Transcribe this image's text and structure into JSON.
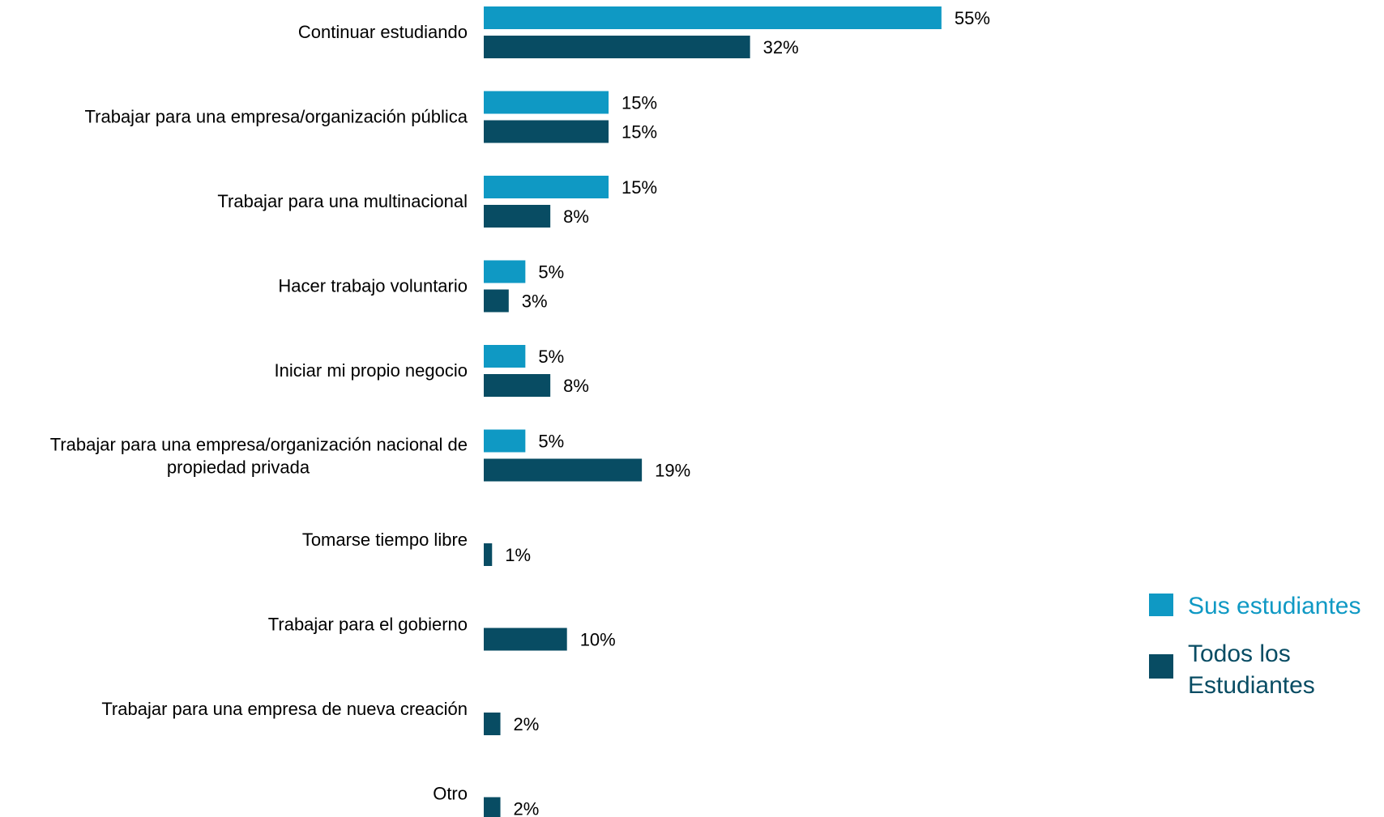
{
  "chart_data": {
    "type": "bar",
    "orientation": "horizontal",
    "categories": [
      "Continuar estudiando",
      "Trabajar para una empresa/organización pública",
      "Trabajar para una multinacional",
      "Hacer trabajo voluntario",
      "Iniciar mi propio negocio",
      "Trabajar para una empresa/organización nacional de propiedad privada",
      "Tomarse tiempo libre",
      "Trabajar para el gobierno",
      "Trabajar para una empresa de nueva creación",
      "Otro"
    ],
    "category_lines": [
      [
        "Continuar estudiando"
      ],
      [
        "Trabajar para una empresa/organización pública"
      ],
      [
        "Trabajar para una multinacional"
      ],
      [
        "Hacer trabajo voluntario"
      ],
      [
        "Iniciar mi propio negocio"
      ],
      [
        "Trabajar para una empresa/organización nacional de",
        "propiedad privada"
      ],
      [
        "Tomarse tiempo libre"
      ],
      [
        "Trabajar para el gobierno"
      ],
      [
        "Trabajar para una empresa de nueva creación"
      ],
      [
        "Otro"
      ]
    ],
    "series": [
      {
        "name": "Sus estudiantes",
        "color": "#0f99c4",
        "values": [
          55,
          15,
          15,
          5,
          5,
          5,
          null,
          null,
          null,
          null
        ],
        "labels": [
          "55%",
          "15%",
          "15%",
          "5%",
          "5%",
          "5%",
          null,
          null,
          null,
          null
        ]
      },
      {
        "name": "Todos los Estudiantes",
        "color": "#084c63",
        "values": [
          32,
          15,
          8,
          3,
          8,
          19,
          1,
          10,
          2,
          2
        ],
        "labels": [
          "32%",
          "15%",
          "8%",
          "3%",
          "8%",
          "19%",
          "1%",
          "10%",
          "2%",
          "2%"
        ]
      }
    ],
    "legend": {
      "placement": "right",
      "items": [
        {
          "lines": [
            "Sus estudiantes"
          ],
          "color": "#0f99c4"
        },
        {
          "lines": [
            "Todos los",
            "Estudiantes"
          ],
          "color": "#084c63"
        }
      ]
    },
    "grid": false
  }
}
